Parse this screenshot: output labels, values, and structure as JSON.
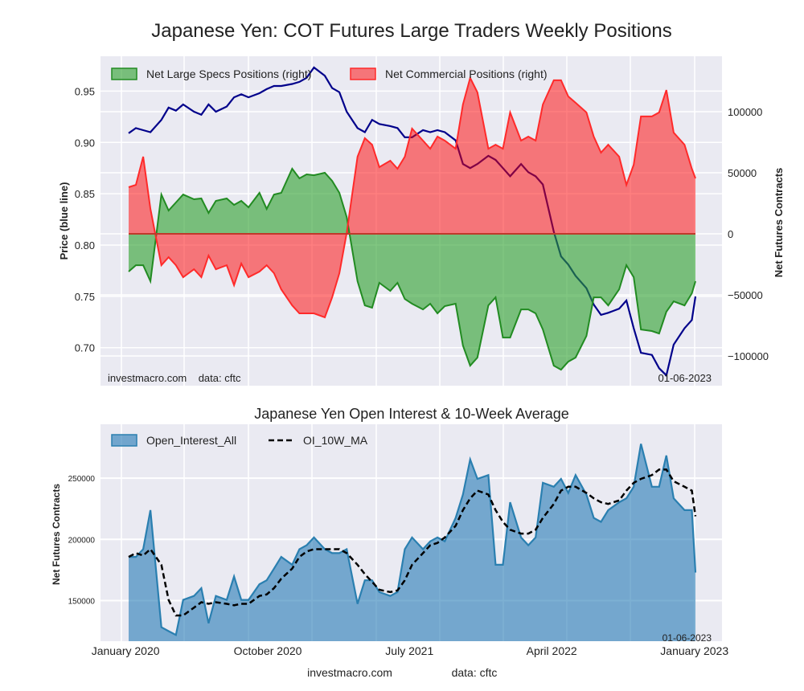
{
  "colors": {
    "background": "#eaeaf2",
    "grid": "#ffffff",
    "price_line": "#00008b",
    "specs_line": "#228b22",
    "specs_fill": "#2ca02c",
    "commercial_line": "#ff2a2a",
    "commercial_fill": "#ff0000",
    "oi_line": "#2a7fb0",
    "oi_fill": "#1f77b4",
    "ma_line": "#000000"
  },
  "chart_data": [
    {
      "type": "area",
      "title": "Japanese Yen: COT Futures Large Traders Weekly Positions",
      "ylabel_left": "Price (blue line)",
      "ylabel_right": "Net Futures Contracts",
      "ylim_left": [
        0.663,
        0.984
      ],
      "ylim_right": [
        -124300,
        145400
      ],
      "yticks_left": [
        "0.95",
        "0.90",
        "0.85",
        "0.80",
        "0.75",
        "0.70"
      ],
      "yticks_right": [
        "100000",
        "50000",
        "0",
        "−50000",
        "−100000"
      ],
      "grid": true,
      "legend_placement": "top",
      "annotation_left": "investmacro.com    data: cftc",
      "annotation_right": "01-06-2023",
      "x": [
        "2020-01-07",
        "2020-01-21",
        "2020-02-04",
        "2020-02-18",
        "2020-03-10",
        "2020-03-24",
        "2020-04-07",
        "2020-04-21",
        "2020-05-12",
        "2020-05-26",
        "2020-06-09",
        "2020-06-23",
        "2020-07-14",
        "2020-07-28",
        "2020-08-11",
        "2020-08-25",
        "2020-09-15",
        "2020-09-29",
        "2020-10-13",
        "2020-10-27",
        "2020-11-17",
        "2020-12-01",
        "2020-12-15",
        "2020-12-29",
        "2021-01-19",
        "2021-02-02",
        "2021-02-16",
        "2021-03-02",
        "2021-03-23",
        "2021-04-06",
        "2021-04-20",
        "2021-05-04",
        "2021-05-25",
        "2021-06-08",
        "2021-06-22",
        "2021-07-06",
        "2021-07-27",
        "2021-08-10",
        "2021-08-24",
        "2021-09-07",
        "2021-09-28",
        "2021-10-12",
        "2021-10-26",
        "2021-11-09",
        "2021-11-30",
        "2021-12-14",
        "2021-12-28",
        "2022-01-11",
        "2022-02-01",
        "2022-02-15",
        "2022-03-01",
        "2022-03-15",
        "2022-04-05",
        "2022-04-19",
        "2022-05-03",
        "2022-05-17",
        "2022-06-07",
        "2022-06-21",
        "2022-07-05",
        "2022-07-19",
        "2022-08-09",
        "2022-08-23",
        "2022-09-06",
        "2022-09-20",
        "2022-10-11",
        "2022-10-25",
        "2022-11-08",
        "2022-11-22",
        "2022-12-13",
        "2022-12-27",
        "2023-01-03"
      ],
      "series": [
        {
          "name": "Net Large Specs Positions (right)",
          "axis": "right",
          "values": [
            -30900,
            -25700,
            -25700,
            -38800,
            32200,
            19100,
            25700,
            32200,
            28300,
            29000,
            17100,
            27000,
            29000,
            23700,
            27000,
            21700,
            33600,
            20400,
            32200,
            33600,
            53300,
            45400,
            48700,
            48000,
            50000,
            43400,
            33600,
            13800,
            -38800,
            -58600,
            -60500,
            -40100,
            -46700,
            -40100,
            -53300,
            -57200,
            -61900,
            -57200,
            -65100,
            -59200,
            -57200,
            -91500,
            -107900,
            -101300,
            -58600,
            -52000,
            -84900,
            -84900,
            -61900,
            -61900,
            -65100,
            -78300,
            -107900,
            -111200,
            -104600,
            -101300,
            -83600,
            -52000,
            -52000,
            -58600,
            -45400,
            -25700,
            -35500,
            -78300,
            -79600,
            -81600,
            -63800,
            -55300,
            -58600,
            -48700,
            -38800
          ]
        },
        {
          "name": "Net Commercial Positions (right)",
          "axis": "right",
          "values": [
            38200,
            40100,
            63200,
            20400,
            -25700,
            -19100,
            -25700,
            -35500,
            -29000,
            -35500,
            -17800,
            -29000,
            -25700,
            -42100,
            -24300,
            -35500,
            -30900,
            -25700,
            -32200,
            -45400,
            -58600,
            -65100,
            -65100,
            -65100,
            -68400,
            -52000,
            -32200,
            700,
            63200,
            78300,
            73000,
            54600,
            59900,
            53300,
            63200,
            86200,
            76300,
            69700,
            79600,
            76300,
            69700,
            105900,
            127700,
            115800,
            69700,
            73000,
            69700,
            99400,
            76300,
            79600,
            76300,
            105900,
            125700,
            125700,
            112500,
            107300,
            99400,
            79600,
            66500,
            73000,
            63200,
            40100,
            56600,
            96100,
            96100,
            99400,
            117800,
            82900,
            73000,
            53300,
            45400
          ]
        },
        {
          "name": "Price",
          "axis": "left",
          "values": [
            0.909,
            0.914,
            0.912,
            0.91,
            0.922,
            0.934,
            0.931,
            0.937,
            0.93,
            0.927,
            0.937,
            0.93,
            0.935,
            0.944,
            0.947,
            0.944,
            0.948,
            0.952,
            0.955,
            0.955,
            0.957,
            0.959,
            0.963,
            0.973,
            0.965,
            0.953,
            0.949,
            0.93,
            0.914,
            0.91,
            0.922,
            0.918,
            0.916,
            0.914,
            0.905,
            0.905,
            0.912,
            0.91,
            0.912,
            0.91,
            0.902,
            0.879,
            0.875,
            0.879,
            0.887,
            0.883,
            0.875,
            0.867,
            0.879,
            0.871,
            0.867,
            0.859,
            0.813,
            0.789,
            0.781,
            0.77,
            0.758,
            0.742,
            0.732,
            0.734,
            0.738,
            0.746,
            0.719,
            0.695,
            0.693,
            0.68,
            0.673,
            0.703,
            0.719,
            0.727,
            0.75
          ]
        }
      ]
    },
    {
      "type": "area",
      "title": "Japanese Yen Open Interest & 10-Week Average",
      "ylabel": "Net Futures Contracts",
      "ylim": [
        116900,
        294000
      ],
      "yticks": [
        "250000",
        "200000",
        "150000"
      ],
      "xticks": [
        {
          "date": "2020-01-01",
          "label": "January 2020"
        },
        {
          "date": "2020-10-01",
          "label": "October 2020"
        },
        {
          "date": "2021-07-01",
          "label": "July 2021"
        },
        {
          "date": "2022-04-01",
          "label": "April 2022"
        },
        {
          "date": "2023-01-01",
          "label": "January 2023"
        }
      ],
      "grid": true,
      "legend_placement": "top-left",
      "annotation_right": "01-06-2023",
      "series": [
        {
          "name": "Open_Interest_All",
          "values": [
            185700,
            185700,
            192000,
            223900,
            128300,
            125100,
            122000,
            150600,
            153800,
            160200,
            131500,
            153800,
            150600,
            169700,
            150600,
            150600,
            163400,
            166600,
            176100,
            185700,
            179300,
            192000,
            195200,
            201600,
            192000,
            188800,
            188800,
            192000,
            147400,
            166600,
            166600,
            157000,
            153800,
            157000,
            192000,
            201600,
            192000,
            198400,
            201600,
            198400,
            217500,
            236600,
            265300,
            249400,
            252500,
            179300,
            179300,
            230300,
            201600,
            195200,
            201600,
            246200,
            243000,
            249400,
            237900,
            252500,
            236600,
            217500,
            214300,
            223900,
            230300,
            233500,
            243000,
            278000,
            243000,
            243000,
            268500,
            233500,
            223900,
            223900,
            172900
          ]
        },
        {
          "name": "OI_10W_MA",
          "values": [
            185700,
            188800,
            186900,
            192000,
            179300,
            150600,
            137900,
            137900,
            144300,
            148700,
            147400,
            148700,
            147400,
            146200,
            147400,
            147400,
            153800,
            155100,
            160200,
            167900,
            176100,
            185700,
            190100,
            192000,
            192000,
            192000,
            192000,
            188800,
            179300,
            171600,
            165300,
            158900,
            157000,
            158300,
            166600,
            179300,
            188800,
            195200,
            197100,
            201600,
            211100,
            223900,
            233500,
            239800,
            236600,
            223900,
            214300,
            207900,
            204700,
            204700,
            207900,
            217500,
            228900,
            239800,
            243000,
            243000,
            237900,
            233500,
            230300,
            228900,
            231800,
            239800,
            246200,
            249400,
            252500,
            257000,
            257000,
            247400,
            243000,
            239800,
            218800
          ]
        }
      ]
    }
  ],
  "footer": {
    "site": "investmacro.com",
    "source": "data: cftc"
  }
}
